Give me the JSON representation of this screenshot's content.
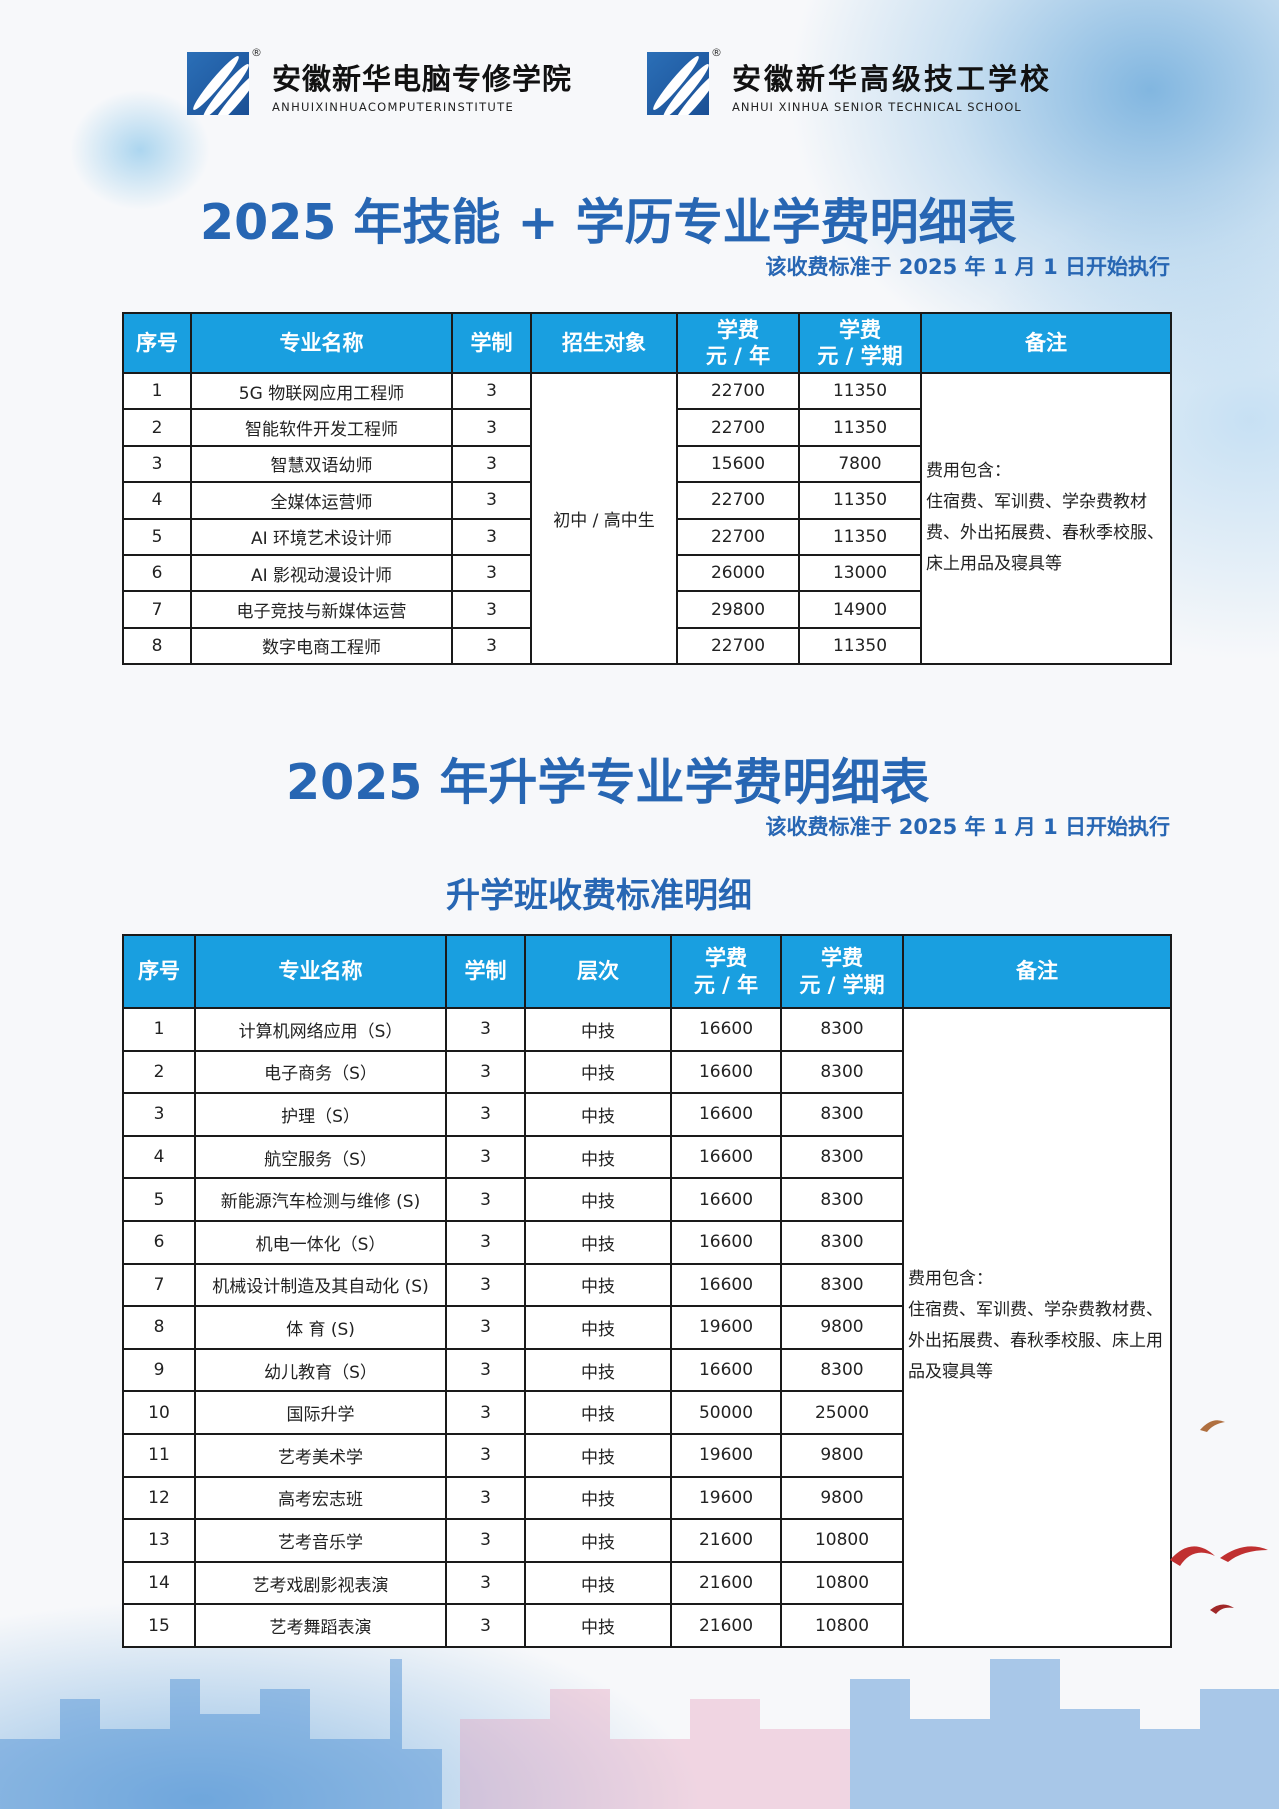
{
  "logos": [
    {
      "cn": "安徽新华电脑专修学院",
      "en": "ANHUIXINHUACOMPUTERINSTITUTE",
      "reg": "®"
    },
    {
      "cn": "安徽新华高级技工学校",
      "en": "ANHUI XINHUA SENIOR TECHNICAL SCHOOL",
      "reg": "®"
    }
  ],
  "section1": {
    "title": "2025 年技能 + 学历专业学费明细表",
    "subtitle": "该收费标准于 2025 年 1 月 1 日开始执行",
    "headers": [
      "序号",
      "专业名称",
      "学制",
      "招生对象",
      "学费\n元 / 年",
      "学费\n元 / 学期",
      "备注"
    ],
    "target": "初中 / 高中生",
    "note_title": "费用包含：",
    "note_body": "住宿费、军训费、学杂费教材费、外出拓展费、春秋季校服、床上用品及寝具等",
    "rows": [
      {
        "no": "1",
        "name": "5G 物联网应用工程师",
        "years": "3",
        "per_year": "22700",
        "per_term": "11350"
      },
      {
        "no": "2",
        "name": "智能软件开发工程师",
        "years": "3",
        "per_year": "22700",
        "per_term": "11350"
      },
      {
        "no": "3",
        "name": "智慧双语幼师",
        "years": "3",
        "per_year": "15600",
        "per_term": "7800"
      },
      {
        "no": "4",
        "name": "全媒体运营师",
        "years": "3",
        "per_year": "22700",
        "per_term": "11350"
      },
      {
        "no": "5",
        "name": "AI 环境艺术设计师",
        "years": "3",
        "per_year": "22700",
        "per_term": "11350"
      },
      {
        "no": "6",
        "name": "AI 影视动漫设计师",
        "years": "3",
        "per_year": "26000",
        "per_term": "13000"
      },
      {
        "no": "7",
        "name": "电子竞技与新媒体运营",
        "years": "3",
        "per_year": "29800",
        "per_term": "14900"
      },
      {
        "no": "8",
        "name": "数字电商工程师",
        "years": "3",
        "per_year": "22700",
        "per_term": "11350"
      }
    ]
  },
  "section2": {
    "title": "2025 年升学专业学费明细表",
    "subtitle": "该收费标准于 2025 年 1 月 1 日开始执行",
    "table_title": "升学班收费标准明细",
    "headers": [
      "序号",
      "专业名称",
      "学制",
      "层次",
      "学费\n元 / 年",
      "学费\n元 / 学期",
      "备注"
    ],
    "note_title": "费用包含：",
    "note_body": "住宿费、军训费、学杂费教材费、外出拓展费、春秋季校服、床上用品及寝具等",
    "rows": [
      {
        "no": "1",
        "name": "计算机网络应用（S）",
        "years": "3",
        "level": "中技",
        "per_year": "16600",
        "per_term": "8300"
      },
      {
        "no": "2",
        "name": "电子商务（S）",
        "years": "3",
        "level": "中技",
        "per_year": "16600",
        "per_term": "8300"
      },
      {
        "no": "3",
        "name": "护理（S）",
        "years": "3",
        "level": "中技",
        "per_year": "16600",
        "per_term": "8300"
      },
      {
        "no": "4",
        "name": "航空服务（S）",
        "years": "3",
        "level": "中技",
        "per_year": "16600",
        "per_term": "8300"
      },
      {
        "no": "5",
        "name": "新能源汽车检测与维修 (S)",
        "years": "3",
        "level": "中技",
        "per_year": "16600",
        "per_term": "8300"
      },
      {
        "no": "6",
        "name": "机电一体化（S）",
        "years": "3",
        "level": "中技",
        "per_year": "16600",
        "per_term": "8300"
      },
      {
        "no": "7",
        "name": "机械设计制造及其自动化 (S)",
        "years": "3",
        "level": "中技",
        "per_year": "16600",
        "per_term": "8300"
      },
      {
        "no": "8",
        "name": "体 育 (S)",
        "years": "3",
        "level": "中技",
        "per_year": "19600",
        "per_term": "9800"
      },
      {
        "no": "9",
        "name": "幼儿教育（S）",
        "years": "3",
        "level": "中技",
        "per_year": "16600",
        "per_term": "8300"
      },
      {
        "no": "10",
        "name": "国际升学",
        "years": "3",
        "level": "中技",
        "per_year": "50000",
        "per_term": "25000"
      },
      {
        "no": "11",
        "name": "艺考美术学",
        "years": "3",
        "level": "中技",
        "per_year": "19600",
        "per_term": "9800"
      },
      {
        "no": "12",
        "name": "高考宏志班",
        "years": "3",
        "level": "中技",
        "per_year": "19600",
        "per_term": "9800"
      },
      {
        "no": "13",
        "name": "艺考音乐学",
        "years": "3",
        "level": "中技",
        "per_year": "21600",
        "per_term": "10800"
      },
      {
        "no": "14",
        "name": "艺考戏剧影视表演",
        "years": "3",
        "level": "中技",
        "per_year": "21600",
        "per_term": "10800"
      },
      {
        "no": "15",
        "name": "艺考舞蹈表演",
        "years": "3",
        "level": "中技",
        "per_year": "21600",
        "per_term": "10800"
      }
    ]
  },
  "colors": {
    "title": "#2766b3",
    "header_bg": "#199fe0",
    "logo": "#2b6fb7"
  }
}
